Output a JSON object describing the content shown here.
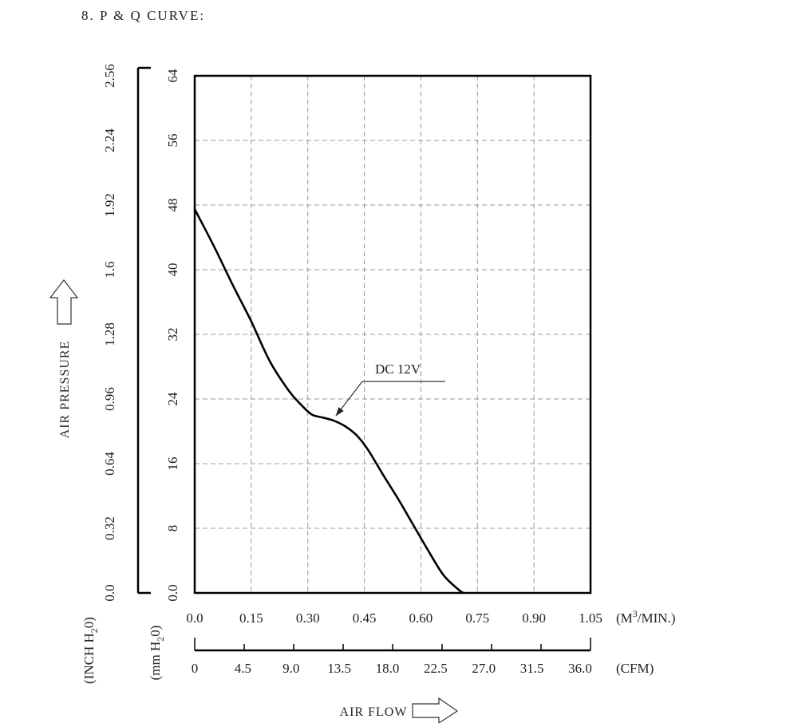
{
  "heading": "8. P & Q CURVE:",
  "chart_data": {
    "type": "line",
    "title": "",
    "xlabel": "AIR FLOW",
    "ylabel": "AIR PRESSURE",
    "x_primary": {
      "unit": "(M³/MIN.)",
      "unit_base": "(M",
      "unit_sup": "3",
      "unit_tail": "/MIN.)",
      "ticks": [
        "0.0",
        "0.15",
        "0.30",
        "0.45",
        "0.60",
        "0.75",
        "0.90",
        "1.05"
      ],
      "xlim": [
        0,
        1.05
      ]
    },
    "x_secondary": {
      "unit": "(CFM)",
      "ticks": [
        "0",
        "4.5",
        "9.0",
        "13.5",
        "18.0",
        "22.5",
        "27.0",
        "31.5",
        "36.0"
      ]
    },
    "y_primary": {
      "unit": "(mm H₂0)",
      "unit_base": "(mm H",
      "unit_sub": "2",
      "unit_tail": "0)",
      "ticks": [
        "0.0",
        "8",
        "16",
        "24",
        "32",
        "40",
        "48",
        "56",
        "64"
      ],
      "ylim": [
        0,
        64
      ]
    },
    "y_secondary": {
      "unit": "(INCH H₂0)",
      "unit_base": "(INCH H",
      "unit_sub": "2",
      "unit_tail": "0)",
      "ticks": [
        "0.0",
        "0.32",
        "0.64",
        "0.96",
        "1.28",
        "1.6",
        "1.92",
        "2.24",
        "2.56"
      ]
    },
    "grid": true,
    "series": [
      {
        "name": "DC 12V",
        "x": [
          0.0,
          0.05,
          0.1,
          0.15,
          0.2,
          0.25,
          0.28,
          0.31,
          0.34,
          0.37,
          0.4,
          0.43,
          0.46,
          0.5,
          0.54,
          0.58,
          0.62,
          0.66,
          0.7,
          0.713
        ],
        "y": [
          47.5,
          43.0,
          38.2,
          33.6,
          28.6,
          25.0,
          23.4,
          22.1,
          21.7,
          21.3,
          20.6,
          19.5,
          17.7,
          14.6,
          11.6,
          8.4,
          5.2,
          2.2,
          0.4,
          0.0
        ]
      }
    ],
    "annotation": {
      "text": "DC 12V",
      "points_to": {
        "x": 0.37,
        "y": 21.5
      }
    }
  }
}
